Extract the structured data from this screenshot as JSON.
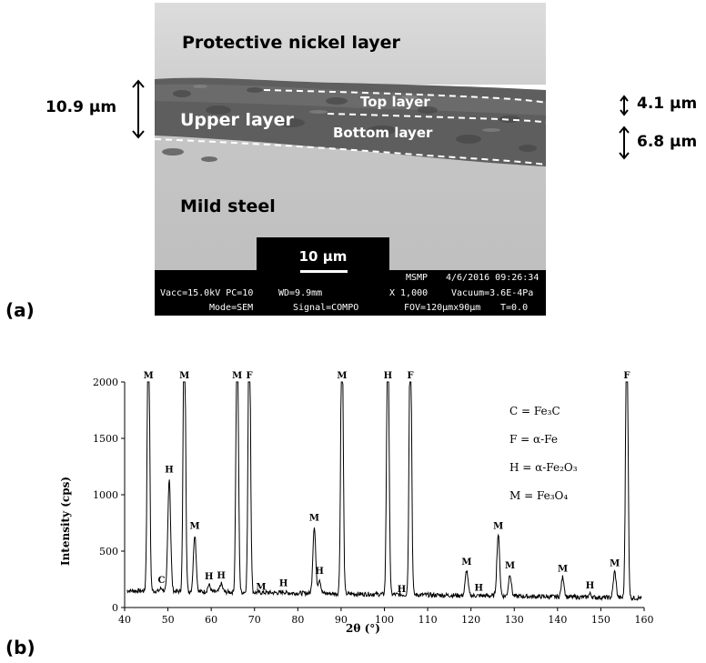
{
  "panel_a": {
    "label": "(a)",
    "layers": {
      "protective": "Protective nickel layer",
      "upper": "Upper layer",
      "top": "Top layer",
      "bottom": "Bottom layer",
      "mild": "Mild steel"
    },
    "thickness": {
      "total": "10.9 µm",
      "top": "4.1 µm",
      "bottom": "6.8 µm"
    },
    "scale_bar": "10 µm",
    "info_bar": {
      "row1_a": "MSMP",
      "row1_b": "4/6/2016 09:26:34",
      "row2_a": "Vacc=15.0kV PC=10",
      "row2_b": "WD=9.9mm",
      "row2_c": "X 1,000",
      "row2_d": "Vacuum=3.6E-4Pa",
      "row3_a": "Mode=SEM",
      "row3_b": "Signal=COMPO",
      "row3_c": "FOV=120µmx90µm",
      "row3_d": "T=0.0"
    }
  },
  "panel_b": {
    "label": "(b)"
  },
  "chart_data": {
    "type": "line",
    "title": "",
    "xlabel": "2θ (°)",
    "ylabel": "Intensity (cps)",
    "xlim": [
      40,
      160
    ],
    "ylim": [
      0,
      2000
    ],
    "x_ticks": [
      "40",
      "50",
      "60",
      "70",
      "80",
      "90",
      "100",
      "110",
      "120",
      "130",
      "140",
      "150",
      "160"
    ],
    "y_ticks": [
      "0",
      "500",
      "1000",
      "1500",
      "2000"
    ],
    "grid": false,
    "legend_position": "top-right",
    "legend": [
      "C = Fe₃C",
      "F = α-Fe",
      "H = α-Fe₂O₃",
      "M = Fe₃O₄"
    ],
    "baseline": 150,
    "peaks": [
      {
        "x": 45.5,
        "y": 2000,
        "label": "M"
      },
      {
        "x": 48.5,
        "y": 170,
        "label": "C"
      },
      {
        "x": 50.3,
        "y": 1150,
        "label": "H"
      },
      {
        "x": 53.8,
        "y": 2000,
        "label": "M"
      },
      {
        "x": 56.2,
        "y": 650,
        "label": "M"
      },
      {
        "x": 59.5,
        "y": 200,
        "label": "H"
      },
      {
        "x": 62.3,
        "y": 210,
        "label": "H"
      },
      {
        "x": 66.0,
        "y": 2000,
        "label": "M"
      },
      {
        "x": 68.8,
        "y": 2000,
        "label": "F"
      },
      {
        "x": 71.5,
        "y": 110,
        "label": "M"
      },
      {
        "x": 76.7,
        "y": 140,
        "label": "H"
      },
      {
        "x": 83.8,
        "y": 720,
        "label": "M"
      },
      {
        "x": 85.0,
        "y": 250,
        "label": "H"
      },
      {
        "x": 90.2,
        "y": 2000,
        "label": "M"
      },
      {
        "x": 100.8,
        "y": 2000,
        "label": "H"
      },
      {
        "x": 104.0,
        "y": 90,
        "label": "H"
      },
      {
        "x": 106.0,
        "y": 2000,
        "label": "F"
      },
      {
        "x": 119.0,
        "y": 330,
        "label": "M"
      },
      {
        "x": 121.8,
        "y": 100,
        "label": "H"
      },
      {
        "x": 126.3,
        "y": 650,
        "label": "M"
      },
      {
        "x": 129.0,
        "y": 300,
        "label": "M"
      },
      {
        "x": 141.2,
        "y": 270,
        "label": "M"
      },
      {
        "x": 147.5,
        "y": 120,
        "label": "H"
      },
      {
        "x": 153.2,
        "y": 320,
        "label": "M"
      },
      {
        "x": 156.0,
        "y": 2000,
        "label": "F"
      }
    ]
  }
}
